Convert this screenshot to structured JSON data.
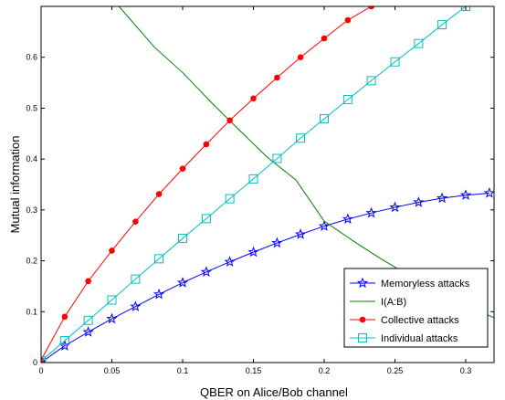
{
  "chart_data": {
    "type": "line",
    "title": "",
    "xlabel": "QBER on Alice/Bob channel",
    "ylabel": "Mutual information",
    "xlim": [
      0,
      0.32
    ],
    "ylim": [
      0,
      0.7
    ],
    "x_ticks": [
      "0",
      "0.05",
      "0.1",
      "0.15",
      "0.2",
      "0.25",
      "0.3"
    ],
    "y_ticks": [
      "0",
      "0.1",
      "0.2",
      "0.3",
      "0.4",
      "0.5",
      "0.6"
    ],
    "grid": false,
    "legend_position": "bottom-right",
    "series": [
      {
        "name": "Memoryless attacks",
        "color": "#0000ff",
        "marker": "star",
        "x": [
          0,
          0.0167,
          0.0333,
          0.05,
          0.0667,
          0.0833,
          0.1,
          0.1167,
          0.1333,
          0.15,
          0.1667,
          0.1833,
          0.2,
          0.2167,
          0.2333,
          0.25,
          0.2667,
          0.2833,
          0.3,
          0.3167
        ],
        "y": [
          0,
          0.033,
          0.06,
          0.086,
          0.11,
          0.134,
          0.157,
          0.178,
          0.198,
          0.217,
          0.235,
          0.252,
          0.268,
          0.282,
          0.294,
          0.305,
          0.315,
          0.323,
          0.329,
          0.333
        ]
      },
      {
        "name": "I(A:B)",
        "color": "#008000",
        "marker": "none",
        "x": [
          0.055,
          0.08,
          0.1,
          0.12,
          0.14,
          0.16,
          0.18,
          0.2,
          0.22,
          0.24,
          0.26,
          0.28,
          0.3,
          0.32
        ],
        "y": [
          0.7,
          0.62,
          0.57,
          0.512,
          0.457,
          0.403,
          0.359,
          0.278,
          0.24,
          0.204,
          0.171,
          0.141,
          0.113,
          0.088
        ]
      },
      {
        "name": "Collective attacks",
        "color": "#ff0000",
        "marker": "dot",
        "x": [
          0,
          0.0167,
          0.0333,
          0.05,
          0.0667,
          0.0833,
          0.1,
          0.1167,
          0.1333,
          0.15,
          0.1667,
          0.1833,
          0.2,
          0.2167,
          0.2333
        ],
        "y": [
          0.005,
          0.09,
          0.16,
          0.22,
          0.277,
          0.331,
          0.381,
          0.429,
          0.476,
          0.519,
          0.56,
          0.6,
          0.637,
          0.673,
          0.7
        ]
      },
      {
        "name": "Individual attacks",
        "color": "#00bfbf",
        "marker": "square",
        "x": [
          0,
          0.0167,
          0.0333,
          0.05,
          0.0667,
          0.0833,
          0.1,
          0.1167,
          0.1333,
          0.15,
          0.1667,
          0.1833,
          0.2,
          0.2167,
          0.2333,
          0.25,
          0.2667,
          0.2833,
          0.3
        ],
        "y": [
          0.003,
          0.043,
          0.083,
          0.123,
          0.164,
          0.204,
          0.244,
          0.283,
          0.322,
          0.361,
          0.401,
          0.441,
          0.479,
          0.517,
          0.554,
          0.591,
          0.627,
          0.664,
          0.7
        ]
      }
    ]
  }
}
